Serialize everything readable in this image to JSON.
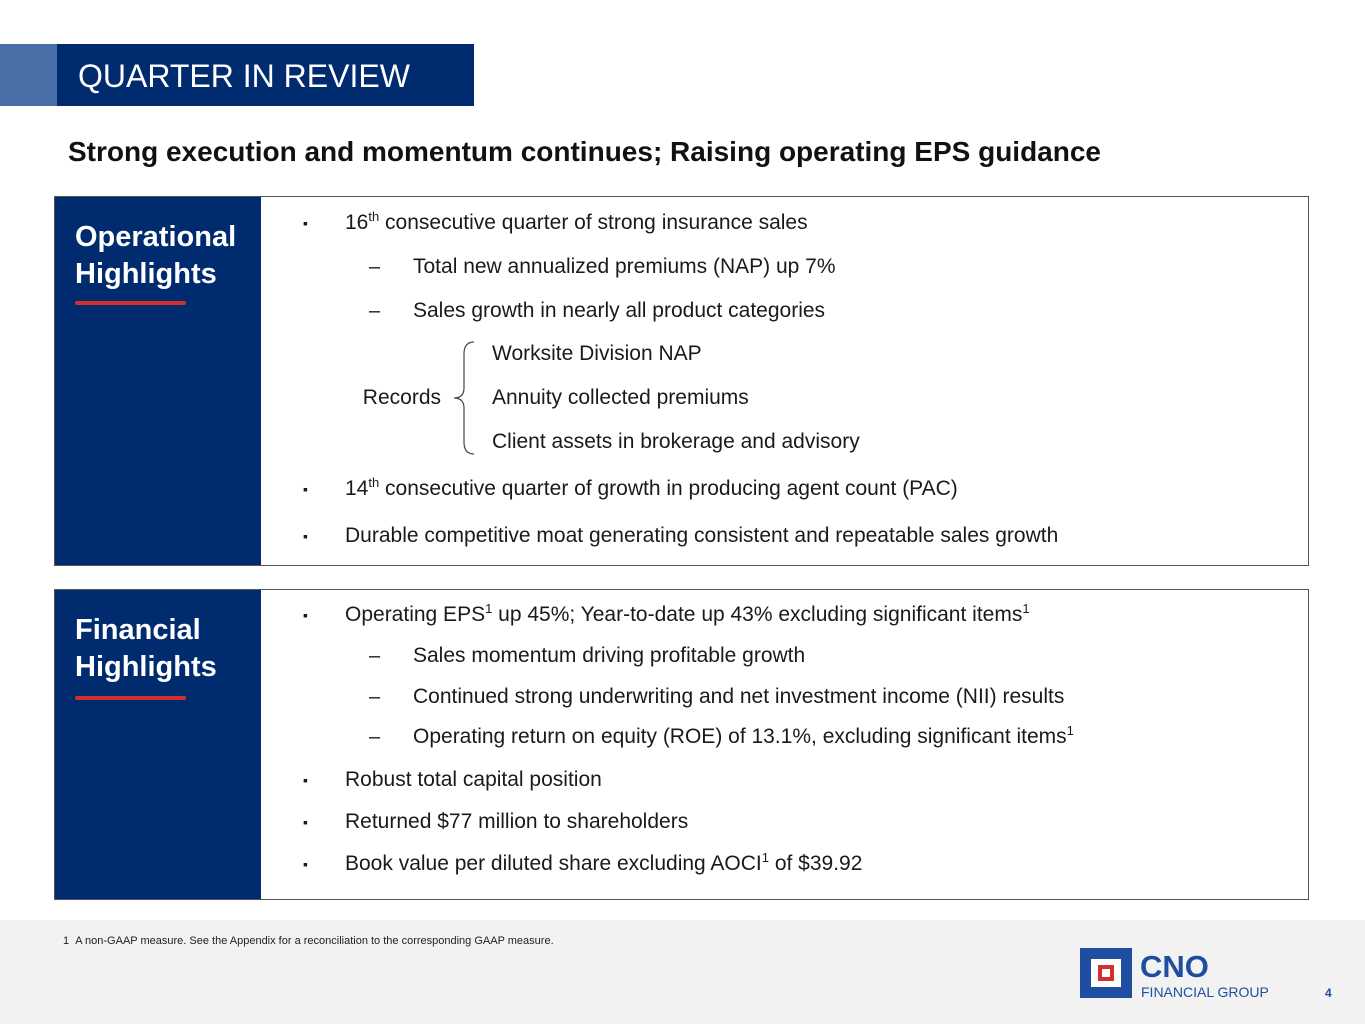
{
  "header": {
    "title": "QUARTER IN REVIEW",
    "subtitle": "Strong execution and momentum continues; Raising operating EPS guidance"
  },
  "sections": [
    {
      "heading": "Operational Highlights",
      "items": [
        {
          "level": 1,
          "segments": [
            {
              "text": "16"
            },
            {
              "sup": "th"
            },
            {
              "text": " consecutive quarter of strong insurance sales"
            }
          ]
        },
        {
          "level": 2,
          "segments": [
            {
              "text": "Total new annualized premiums (NAP) up 7%"
            }
          ]
        },
        {
          "level": 2,
          "segments": [
            {
              "text": "Sales growth in nearly all product categories"
            }
          ]
        },
        {
          "label": "Records",
          "entries": [
            "Worksite Division NAP",
            "Annuity collected premiums",
            "Client assets in brokerage and advisory"
          ]
        },
        {
          "level": 1,
          "segments": [
            {
              "text": "14"
            },
            {
              "sup": "th"
            },
            {
              "text": " consecutive quarter of growth in producing agent count (PAC)"
            }
          ]
        },
        {
          "level": 1,
          "segments": [
            {
              "text": "Durable competitive moat generating consistent and repeatable sales growth"
            }
          ]
        }
      ]
    },
    {
      "heading": "Financial Highlights",
      "items": [
        {
          "level": 1,
          "segments": [
            {
              "text": "Operating EPS"
            },
            {
              "sup": "1"
            },
            {
              "text": " up 45%; Year-to-date up 43% excluding significant items"
            },
            {
              "sup": "1"
            }
          ]
        },
        {
          "level": 2,
          "segments": [
            {
              "text": "Sales momentum driving profitable growth"
            }
          ]
        },
        {
          "level": 2,
          "segments": [
            {
              "text": "Continued strong underwriting and net investment income (NII) results"
            }
          ]
        },
        {
          "level": 2,
          "segments": [
            {
              "text": "Operating return on equity (ROE) of 13.1%, excluding significant items"
            },
            {
              "sup": "1"
            }
          ]
        },
        {
          "level": 1,
          "segments": [
            {
              "text": "Robust total capital position"
            }
          ]
        },
        {
          "level": 1,
          "segments": [
            {
              "text": "Returned $77 million to shareholders"
            }
          ]
        },
        {
          "level": 1,
          "segments": [
            {
              "text": "Book value per diluted share excluding AOCI"
            },
            {
              "sup": "1"
            },
            {
              "text": " of $39.92"
            }
          ]
        }
      ]
    }
  ],
  "footnote": {
    "number": "1",
    "text": "A non-GAAP measure. See the Appendix for a reconciliation to the corresponding GAAP measure."
  },
  "logo": {
    "name": "CNO",
    "tagline": "FINANCIAL GROUP"
  },
  "page_number": 4
}
